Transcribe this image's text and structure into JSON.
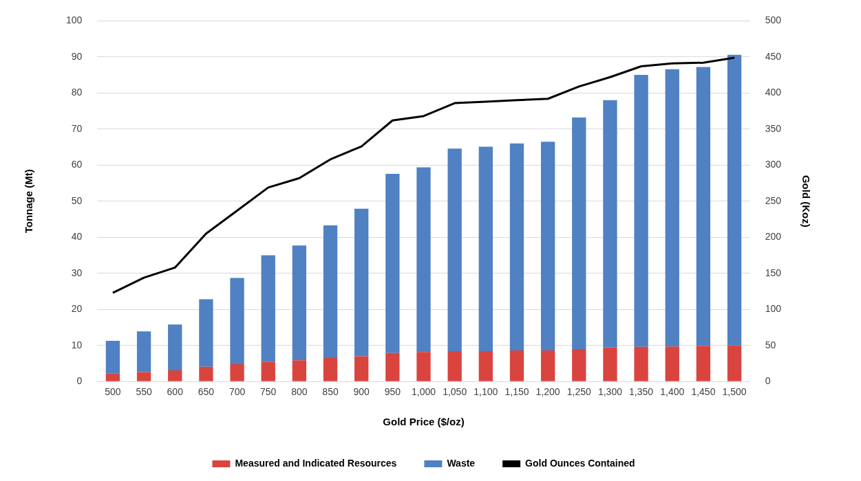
{
  "chart_data": {
    "type": "bar",
    "stacked": true,
    "xlabel": "Gold Price ($/oz)",
    "ylabel": "Tonnage (Mt)",
    "y2label": "Gold (Koz)",
    "categories": [
      "500",
      "550",
      "600",
      "650",
      "700",
      "750",
      "800",
      "850",
      "900",
      "950",
      "1,000",
      "1,050",
      "1,100",
      "1,150",
      "1,200",
      "1,250",
      "1,300",
      "1,350",
      "1,400",
      "1,450",
      "1,500"
    ],
    "series": [
      {
        "name": "Measured and Indicated Resources",
        "color": "#d9443f",
        "values": [
          2.2,
          2.6,
          3.1,
          4.1,
          4.8,
          5.5,
          5.9,
          6.5,
          7.0,
          7.9,
          8.2,
          8.4,
          8.4,
          8.6,
          8.6,
          9.0,
          9.4,
          9.6,
          9.7,
          9.9,
          10.0
        ]
      },
      {
        "name": "Waste",
        "color": "#4f81c3",
        "values": [
          9.1,
          11.3,
          12.7,
          18.7,
          23.9,
          29.5,
          31.8,
          36.8,
          40.9,
          49.7,
          51.2,
          56.2,
          56.7,
          57.4,
          57.9,
          64.2,
          68.6,
          75.4,
          76.9,
          77.3,
          80.6
        ]
      },
      {
        "name": "Gold Ounces Contained",
        "type": "line",
        "axis": "y2",
        "color": "#000000",
        "values": [
          123,
          144,
          158,
          205,
          237,
          269,
          282,
          308,
          326,
          362,
          368,
          386,
          388,
          390,
          392,
          409,
          422,
          437,
          441,
          442,
          449
        ]
      }
    ],
    "ylim": [
      0,
      100
    ],
    "yticks": [
      0,
      10,
      20,
      30,
      40,
      50,
      60,
      70,
      80,
      90,
      100
    ],
    "y2lim": [
      0,
      500
    ],
    "y2ticks": [
      0,
      50,
      100,
      150,
      200,
      250,
      300,
      350,
      400,
      450,
      500
    ],
    "grid": "y",
    "legend": "bottom",
    "marker": "none"
  }
}
